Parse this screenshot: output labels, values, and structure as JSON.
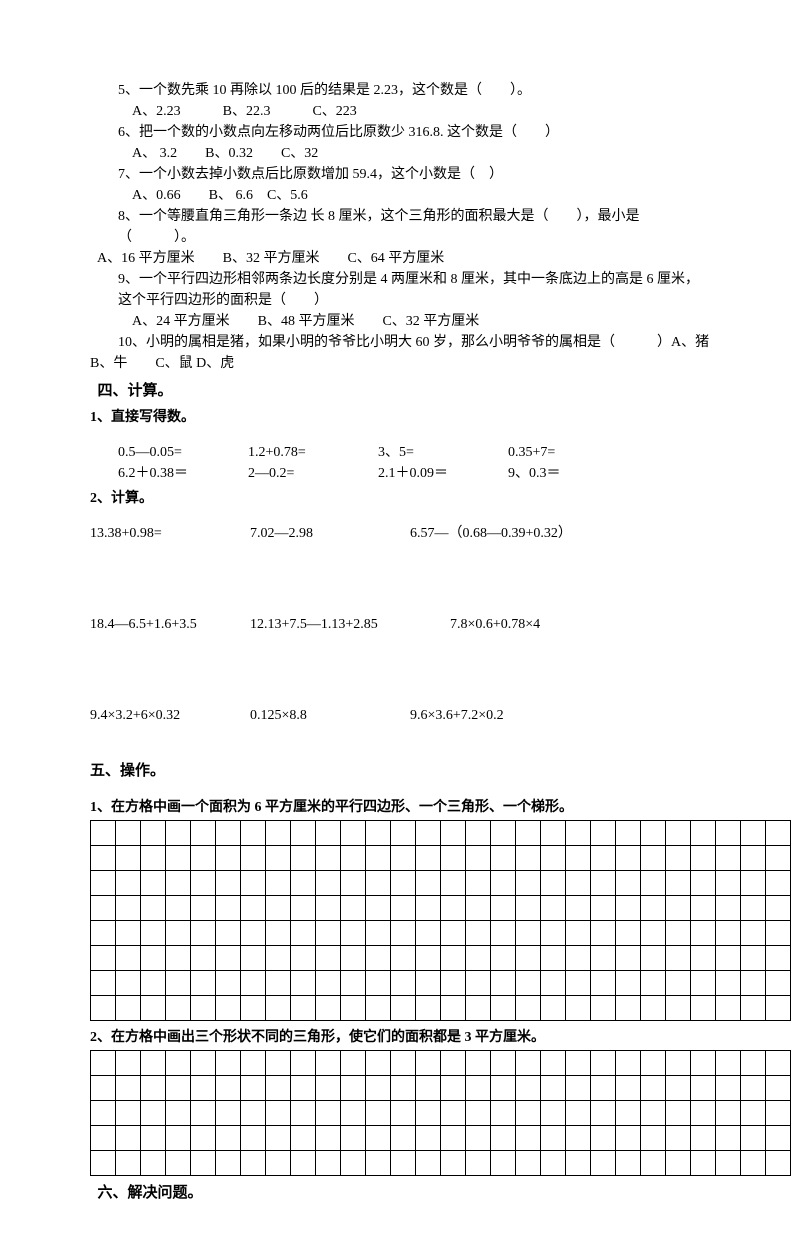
{
  "questions": {
    "q5": {
      "text": "5、一个数先乘 10 再除以 100 后的结果是 2.23，这个数是（　　）。",
      "opts": "A、2.23　　　B、22.3　　　C、223"
    },
    "q6": {
      "text": "6、把一个数的小数点向左移动两位后比原数少 316.8. 这个数是（　　）",
      "opts": "A、 3.2　　B、0.32　　C、32"
    },
    "q7": {
      "text": "7、一个小数去掉小数点后比原数增加 59.4，这个小数是（　）",
      "opts": "A、0.66　　B、 6.6　C、5.6"
    },
    "q8": {
      "text": "8、一个等腰直角三角形一条边 长 8 厘米，这个三角形的面积最大是（　　），最小是（　　　）。",
      "opts": "A、16 平方厘米　　B、32 平方厘米　　C、64 平方厘米"
    },
    "q9": {
      "text": "9、一个平行四边形相邻两条边长度分别是 4 两厘米和 8 厘米，其中一条底边上的高是 6 厘米，这个平行四边形的面积是（　　）",
      "opts": "A、24 平方厘米　　B、48 平方厘米　　C、32 平方厘米"
    },
    "q10": {
      "text": "10、小明的属相是猪，如果小明的爷爷比小明大 60 岁，那么小明爷爷的属相是（　　　）A、猪　　",
      "line2": "B、牛　　C、鼠  D、虎"
    }
  },
  "section4": {
    "title": "四、计算。",
    "sub1": "1、直接写得数。",
    "row1": {
      "a": "0.5—0.05=",
      "b": "1.2+0.78=",
      "c": "3、5=",
      "d": "0.35+7="
    },
    "row2": {
      "a": "6.2＋0.38＝",
      "b": "2—0.2=",
      "c": "2.1＋0.09＝",
      "d": "9、0.3＝"
    },
    "sub2": "2、计算。",
    "row3": {
      "a": "13.38+0.98=",
      "b": "7.02—2.98",
      "c": "6.57—（0.68—0.39+0.32）"
    },
    "row4": {
      "a": "18.4—6.5+1.6+3.5",
      "b": "12.13+7.5—1.13+2.85",
      "c": "7.8×0.6+0.78×4"
    },
    "row5": {
      "a": "9.4×3.2+6×0.32",
      "b": "0.125×8.8",
      "c": "9.6×3.6+7.2×0.2"
    }
  },
  "section5": {
    "title": "五、操作。",
    "sub1": "1、在方格中画一个面积为 6 平方厘米的平行四边形、一个三角形、一个梯形。",
    "sub2": "2、在方格中画出三个形状不同的三角形，使它们的面积都是 3 平方厘米。"
  },
  "section6": {
    "title": "六、解决问题。"
  },
  "grids": {
    "grid1": {
      "rows": 8,
      "cols": 28
    },
    "grid2": {
      "rows": 5,
      "cols": 28
    }
  }
}
